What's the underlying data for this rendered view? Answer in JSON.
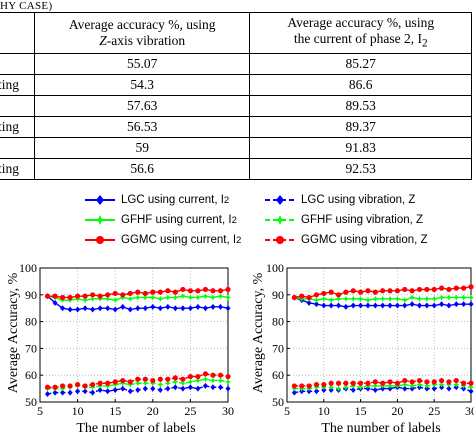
{
  "caption": "HY CASE)",
  "table": {
    "headers": [
      "",
      "Average accuracy %, using Z-axis vibration",
      "Average accuracy %, using the current of phase 2, I2"
    ],
    "header_col1_line1": "Average accuracy %, using",
    "header_col1_line2": "Z-axis vibration",
    "header_col2_line1": "Average accuracy %, using",
    "header_col2_line2": "the current of phase 2, I",
    "header_col2_sub": "2",
    "rows": [
      {
        "label": "",
        "vib": "55.07",
        "cur": "85.27"
      },
      {
        "label": "ting",
        "vib": "54.3",
        "cur": "86.6"
      },
      {
        "label": "",
        "vib": "57.63",
        "cur": "89.53"
      },
      {
        "label": "ting",
        "vib": "56.53",
        "cur": "89.37"
      },
      {
        "label": "",
        "vib": "59",
        "cur": "91.83"
      },
      {
        "label": "ting",
        "vib": "56.6",
        "cur": "92.53"
      }
    ]
  },
  "legend": [
    {
      "label": "LGC using current, I",
      "sub": "2",
      "color": "#0000ff",
      "marker": "diamond",
      "dash": false
    },
    {
      "label": "LGC using vibration, Z",
      "sub": "",
      "color": "#0000ff",
      "marker": "diamond",
      "dash": true
    },
    {
      "label": "GFHF using current, I",
      "sub": "2",
      "color": "#00ff00",
      "marker": "star",
      "dash": false
    },
    {
      "label": "GFHF using vibration,  Z",
      "sub": "",
      "color": "#00ff00",
      "marker": "star",
      "dash": true
    },
    {
      "label": "GGMC using current, I",
      "sub": "2",
      "color": "#ff0000",
      "marker": "circle",
      "dash": false
    },
    {
      "label": "GGMC using vibration,  Z",
      "sub": "",
      "color": "#ff0000",
      "marker": "circle",
      "dash": true
    }
  ],
  "chart_data": [
    {
      "type": "line",
      "xlabel": "The number of labels",
      "ylabel": "Average Accuracy, %",
      "xlim": [
        5,
        30
      ],
      "ylim": [
        50,
        100
      ],
      "xticks": [
        5,
        10,
        15,
        20,
        25,
        30
      ],
      "yticks": [
        50,
        60,
        70,
        80,
        90,
        100
      ],
      "x": [
        6,
        7,
        8,
        9,
        10,
        11,
        12,
        13,
        14,
        15,
        16,
        17,
        18,
        19,
        20,
        21,
        22,
        23,
        24,
        25,
        26,
        27,
        28,
        29,
        30
      ],
      "series": [
        {
          "name": "LGC using current, I2",
          "values": [
            89.5,
            87,
            85,
            84.5,
            84.5,
            85,
            84.5,
            85,
            85,
            84.5,
            85.5,
            84.5,
            85,
            85,
            85.5,
            85,
            85.5,
            85,
            85,
            85,
            85.5,
            85,
            85.5,
            85.5,
            85
          ]
        },
        {
          "name": "LGC using vibration, Z",
          "values": [
            53,
            53.5,
            53.5,
            53.5,
            54,
            54,
            53.5,
            54.5,
            54,
            54.5,
            55,
            54,
            54.5,
            55,
            55,
            54.5,
            55,
            55.5,
            55,
            55.5,
            55,
            56,
            55.5,
            55.5,
            55
          ]
        },
        {
          "name": "GFHF using current, I2",
          "values": [
            89.5,
            89,
            88,
            88,
            88.5,
            88,
            88.5,
            88.5,
            88.5,
            88,
            89,
            88.5,
            89,
            89,
            89,
            88.5,
            89,
            89,
            89.5,
            89,
            89,
            89.5,
            89,
            89.5,
            89
          ]
        },
        {
          "name": "GFHF using vibration,  Z",
          "values": [
            55,
            55,
            55,
            55.5,
            56,
            55.5,
            55.5,
            56,
            56,
            56.5,
            57,
            56.5,
            57,
            57,
            57,
            56.5,
            57,
            57.5,
            57,
            57.5,
            58,
            58.5,
            58,
            58,
            57.5
          ]
        },
        {
          "name": "GGMC using current, I2",
          "values": [
            89.5,
            89.5,
            89,
            89,
            89.5,
            89.5,
            90,
            89.5,
            90,
            90.5,
            90,
            90.5,
            91,
            90.5,
            91,
            91,
            91.5,
            91,
            92,
            91.5,
            91.5,
            92,
            91.5,
            91.5,
            92
          ]
        },
        {
          "name": "GGMC using vibration,  Z",
          "values": [
            55.5,
            55.5,
            56,
            56,
            56.5,
            56,
            56.5,
            57,
            57,
            57.5,
            58,
            57.5,
            58.5,
            58.5,
            58,
            58.5,
            58.5,
            59,
            58.5,
            59.5,
            59.5,
            60.5,
            60,
            60,
            59.5
          ]
        }
      ]
    },
    {
      "type": "line",
      "xlabel": "The number of labels",
      "ylabel": "Average Accuracy, %",
      "xlim": [
        5,
        30
      ],
      "ylim": [
        50,
        100
      ],
      "xticks": [
        5,
        10,
        15,
        20,
        25,
        30
      ],
      "yticks": [
        50,
        60,
        70,
        80,
        90,
        100
      ],
      "x": [
        6,
        7,
        8,
        9,
        10,
        11,
        12,
        13,
        14,
        15,
        16,
        17,
        18,
        19,
        20,
        21,
        22,
        23,
        24,
        25,
        26,
        27,
        28,
        29,
        30
      ],
      "series": [
        {
          "name": "LGC using current, I2",
          "values": [
            89,
            88,
            87,
            86.5,
            86,
            86,
            86,
            85.5,
            86,
            86,
            86,
            86,
            86,
            86,
            86,
            86,
            86.5,
            86,
            86,
            86,
            86.5,
            86,
            86.5,
            86.5,
            86.5
          ]
        },
        {
          "name": "LGC using vibration, Z",
          "values": [
            53.5,
            54,
            54,
            54,
            54.5,
            54.5,
            54.5,
            55,
            54.5,
            55,
            55,
            54.5,
            55,
            55,
            55.5,
            55,
            55,
            55.5,
            55,
            55,
            55.5,
            55,
            55.5,
            55,
            54
          ]
        },
        {
          "name": "GFHF using current, I2",
          "values": [
            89,
            88.5,
            88.5,
            88,
            88.5,
            88,
            88.5,
            88.5,
            88.5,
            88.5,
            88,
            88.5,
            88.5,
            88.5,
            88.5,
            88,
            89,
            88.5,
            88.5,
            88.5,
            89,
            89,
            89,
            89,
            89
          ]
        },
        {
          "name": "GFHF using vibration,  Z",
          "values": [
            55,
            55,
            55,
            55.5,
            55.5,
            55.5,
            55,
            55.5,
            56,
            55.5,
            56,
            56,
            56,
            56,
            56,
            56.5,
            56,
            56.5,
            56,
            56.5,
            56.5,
            56.5,
            56.5,
            56,
            55.5
          ]
        },
        {
          "name": "GGMC using current, I2",
          "values": [
            89,
            89.5,
            89,
            90,
            90.5,
            91,
            90,
            91,
            91.5,
            91,
            91.5,
            91,
            91.5,
            91.5,
            91.5,
            92,
            91.5,
            92,
            92,
            92,
            92.5,
            92,
            92.5,
            92.5,
            93
          ]
        },
        {
          "name": "GGMC using vibration,  Z",
          "values": [
            56,
            56,
            56,
            56.5,
            56.5,
            57,
            57,
            57,
            57,
            57,
            57,
            57.5,
            57,
            57.5,
            57,
            58,
            57.5,
            58,
            57.5,
            57.5,
            58,
            57.5,
            58,
            57,
            57
          ]
        }
      ]
    }
  ]
}
